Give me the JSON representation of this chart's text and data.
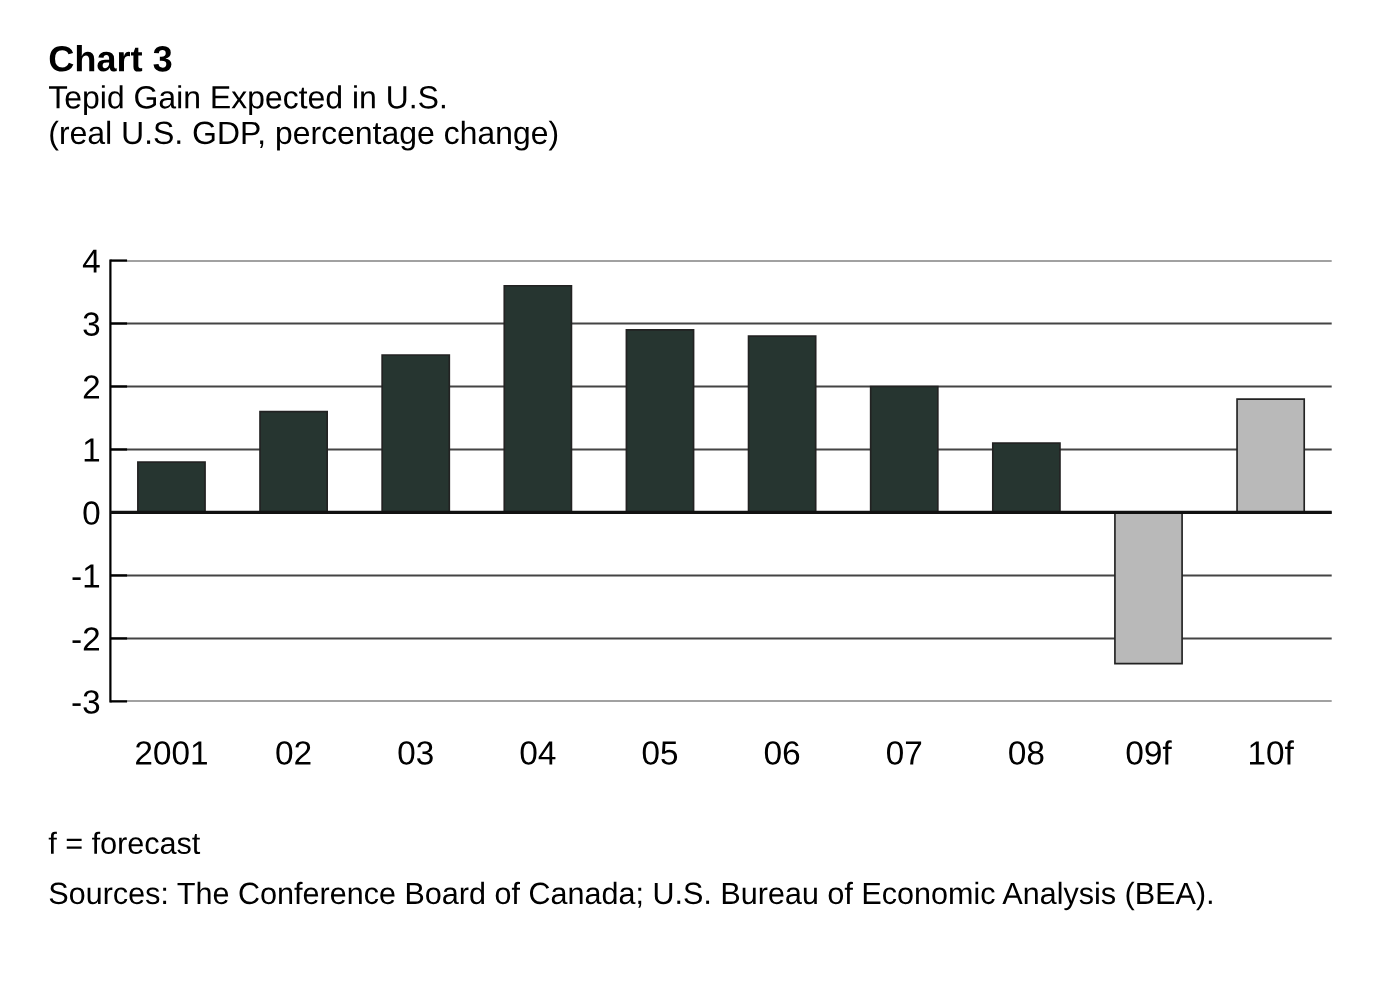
{
  "chart_data": {
    "type": "bar",
    "title": "Chart 3",
    "subtitle": "Tepid Gain Expected in U.S.\n(real U.S. GDP, percentage change)",
    "categories": [
      "2001",
      "02",
      "03",
      "04",
      "05",
      "06",
      "07",
      "08",
      "09f",
      "10f"
    ],
    "values": [
      0.8,
      1.6,
      2.5,
      3.6,
      2.9,
      2.8,
      2.0,
      1.1,
      -2.4,
      1.8
    ],
    "colors": [
      "#263530",
      "#263530",
      "#263530",
      "#263530",
      "#263530",
      "#263530",
      "#263530",
      "#263530",
      "#b9b9b9",
      "#b9b9b9"
    ],
    "ylim": [
      -3,
      4
    ],
    "yticks": [
      {
        "value": -3,
        "label": "-3"
      },
      {
        "value": -2,
        "label": "-2"
      },
      {
        "value": -1,
        "label": "-1"
      },
      0,
      1,
      2,
      3,
      4
    ],
    "grid": "y",
    "annotations": [
      "f = forecast",
      "Sources: The Conference Board of Canada; U.S. Bureau of Economic Analysis (BEA)."
    ]
  }
}
